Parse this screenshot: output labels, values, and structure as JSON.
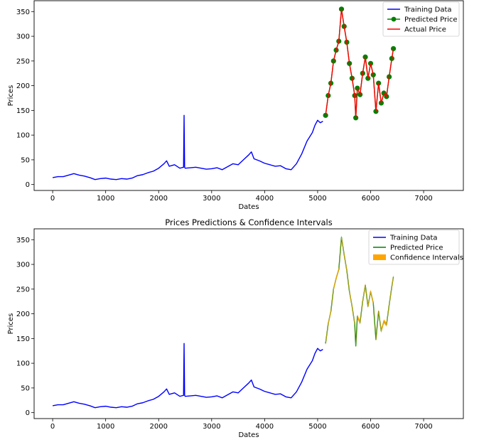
{
  "chart_data": [
    {
      "type": "line",
      "title": "",
      "xlabel": "Dates",
      "ylabel": "Prices",
      "xlim": [
        -350,
        7750
      ],
      "ylim": [
        -12,
        372
      ],
      "xticks": [
        0,
        1000,
        2000,
        3000,
        4000,
        5000,
        6000,
        7000
      ],
      "yticks": [
        0,
        50,
        100,
        150,
        200,
        250,
        300,
        350
      ],
      "grid": false,
      "legend_position": "top-right",
      "series": [
        {
          "name": "Training Data",
          "color": "#0000ff",
          "style": "line",
          "x": [
            0,
            100,
            200,
            300,
            400,
            500,
            600,
            700,
            800,
            900,
            1000,
            1100,
            1200,
            1300,
            1400,
            1500,
            1600,
            1700,
            1800,
            1900,
            2000,
            2100,
            2150,
            2200,
            2300,
            2400,
            2470,
            2480,
            2490,
            2500,
            2600,
            2700,
            2800,
            2900,
            3000,
            3100,
            3200,
            3300,
            3400,
            3500,
            3600,
            3700,
            3750,
            3800,
            3900,
            4000,
            4100,
            4200,
            4300,
            4400,
            4500,
            4600,
            4700,
            4800,
            4900,
            4950,
            5000,
            5050,
            5100
          ],
          "y": [
            14,
            16,
            16,
            19,
            22,
            19,
            17,
            14,
            10,
            12,
            13,
            11,
            10,
            12,
            11,
            13,
            18,
            20,
            24,
            27,
            33,
            42,
            48,
            37,
            40,
            33,
            35,
            140,
            35,
            33,
            34,
            35,
            33,
            31,
            32,
            34,
            30,
            36,
            42,
            40,
            50,
            60,
            66,
            52,
            48,
            43,
            40,
            37,
            38,
            32,
            30,
            42,
            62,
            88,
            105,
            120,
            130,
            125,
            128
          ]
        },
        {
          "name": "Predicted Price",
          "color": "#008000",
          "style": "line-marker",
          "x": [
            5150,
            5200,
            5250,
            5300,
            5350,
            5400,
            5450,
            5500,
            5550,
            5600,
            5650,
            5700,
            5720,
            5750,
            5800,
            5850,
            5900,
            5950,
            6000,
            6050,
            6100,
            6150,
            6200,
            6250,
            6300,
            6350,
            6400,
            6430
          ],
          "y": [
            140,
            180,
            205,
            250,
            272,
            290,
            355,
            320,
            288,
            245,
            215,
            180,
            135,
            195,
            182,
            225,
            258,
            215,
            245,
            222,
            148,
            205,
            165,
            185,
            178,
            218,
            255,
            275
          ]
        },
        {
          "name": "Actual Price",
          "color": "#ff0000",
          "style": "line",
          "x": [
            5150,
            5200,
            5250,
            5300,
            5350,
            5400,
            5450,
            5500,
            5550,
            5600,
            5650,
            5700,
            5720,
            5750,
            5800,
            5850,
            5900,
            5950,
            6000,
            6050,
            6100,
            6150,
            6200,
            6250,
            6300,
            6350,
            6400,
            6430
          ],
          "y": [
            140,
            180,
            205,
            250,
            272,
            290,
            355,
            320,
            288,
            245,
            215,
            180,
            135,
            195,
            182,
            225,
            258,
            215,
            245,
            222,
            148,
            205,
            165,
            185,
            178,
            218,
            255,
            275
          ]
        }
      ]
    },
    {
      "type": "line",
      "title": "Prices Predictions & Confidence Intervals",
      "xlabel": "Dates",
      "ylabel": "Prices",
      "xlim": [
        -350,
        7750
      ],
      "ylim": [
        -12,
        372
      ],
      "xticks": [
        0,
        1000,
        2000,
        3000,
        4000,
        5000,
        6000,
        7000
      ],
      "yticks": [
        0,
        50,
        100,
        150,
        200,
        250,
        300,
        350
      ],
      "grid": false,
      "legend_position": "top-right",
      "series": [
        {
          "name": "Training Data",
          "color": "#0000ff",
          "style": "line",
          "x": [
            0,
            100,
            200,
            300,
            400,
            500,
            600,
            700,
            800,
            900,
            1000,
            1100,
            1200,
            1300,
            1400,
            1500,
            1600,
            1700,
            1800,
            1900,
            2000,
            2100,
            2150,
            2200,
            2300,
            2400,
            2470,
            2480,
            2490,
            2500,
            2600,
            2700,
            2800,
            2900,
            3000,
            3100,
            3200,
            3300,
            3400,
            3500,
            3600,
            3700,
            3750,
            3800,
            3900,
            4000,
            4100,
            4200,
            4300,
            4400,
            4500,
            4600,
            4700,
            4800,
            4900,
            4950,
            5000,
            5050,
            5100
          ],
          "y": [
            14,
            16,
            16,
            19,
            22,
            19,
            17,
            14,
            10,
            12,
            13,
            11,
            10,
            12,
            11,
            13,
            18,
            20,
            24,
            27,
            33,
            42,
            48,
            37,
            40,
            33,
            35,
            140,
            35,
            33,
            34,
            35,
            33,
            31,
            32,
            34,
            30,
            36,
            42,
            40,
            50,
            60,
            66,
            52,
            48,
            43,
            40,
            37,
            38,
            32,
            30,
            42,
            62,
            88,
            105,
            120,
            130,
            125,
            128
          ]
        },
        {
          "name": "Predicted Price",
          "color": "#008000",
          "style": "line",
          "x": [
            5150,
            5200,
            5250,
            5300,
            5350,
            5400,
            5450,
            5500,
            5550,
            5600,
            5650,
            5700,
            5720,
            5750,
            5800,
            5850,
            5900,
            5950,
            6000,
            6050,
            6100,
            6150,
            6200,
            6250,
            6300,
            6350,
            6400,
            6430
          ],
          "y": [
            140,
            180,
            205,
            250,
            272,
            290,
            355,
            320,
            288,
            245,
            215,
            180,
            135,
            195,
            182,
            225,
            258,
            215,
            245,
            222,
            148,
            205,
            165,
            185,
            178,
            218,
            255,
            275
          ]
        },
        {
          "name": "Confidence Intervals",
          "color": "#ffa500",
          "style": "band",
          "x": [
            5150,
            5200,
            5250,
            5300,
            5350,
            5400,
            5450,
            5500,
            5550,
            5600,
            5650,
            5700,
            5720,
            5750,
            5800,
            5850,
            5900,
            5950,
            6000,
            6050,
            6100,
            6150,
            6200,
            6250,
            6300,
            6350,
            6400,
            6430
          ],
          "lower": [
            136,
            176,
            201,
            246,
            268,
            286,
            351,
            316,
            284,
            241,
            211,
            176,
            131,
            191,
            178,
            221,
            254,
            211,
            241,
            218,
            144,
            201,
            161,
            181,
            174,
            214,
            251,
            271
          ],
          "upper": [
            144,
            184,
            209,
            254,
            276,
            294,
            359,
            324,
            292,
            249,
            219,
            184,
            139,
            199,
            186,
            229,
            262,
            219,
            249,
            226,
            152,
            209,
            169,
            189,
            182,
            222,
            259,
            279
          ]
        }
      ]
    }
  ]
}
